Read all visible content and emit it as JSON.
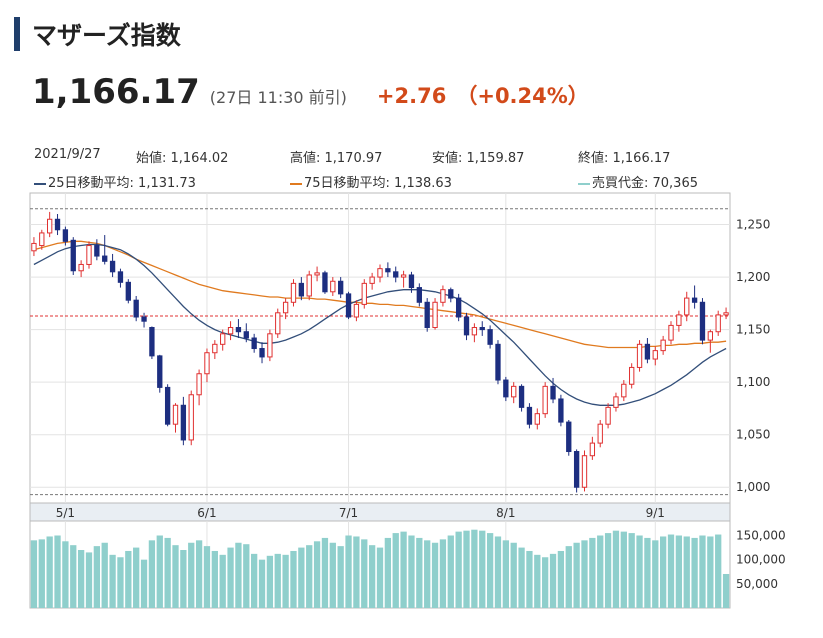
{
  "header": {
    "title": "マザーズ指数",
    "price": "1,166.17",
    "time": "(27日 11:30 前引)",
    "change": "+2.76",
    "change_pct": "（+0.24%）"
  },
  "info_row1": {
    "date": "2021/9/27",
    "open": "始値: 1,164.02",
    "high": "高値: 1,170.97",
    "low": "安値: 1,159.87",
    "close": "終値: 1,166.17"
  },
  "info_row2": {
    "ma25": "25日移動平均: 1,131.73",
    "ma75": "75日移動平均: 1,138.63",
    "volume": "売買代金: 70,365"
  },
  "colors": {
    "up": "#e03030",
    "down": "#1d2e80",
    "ma25": "#334f7a",
    "ma75": "#e07a1f",
    "volume": "#8fcfcc",
    "price_line": "#e03030"
  },
  "chart_data": {
    "type": "candlestick",
    "x_ticks": [
      "5/1",
      "6/1",
      "7/1",
      "8/1",
      "9/1"
    ],
    "y_ticks": [
      "1,250",
      "1,200",
      "1,150",
      "1,100",
      "1,050",
      "1,000"
    ],
    "y_range": [
      985,
      1280
    ],
    "reference_lines": {
      "high_dashed": 1265,
      "low_dashed": 993,
      "current_red": 1163
    },
    "volume_ticks": [
      "150,000",
      "100,000",
      "50,000"
    ],
    "volume_range": [
      0,
      180000
    ],
    "candles": [
      [
        1225,
        1238,
        1220,
        1232
      ],
      [
        1230,
        1245,
        1226,
        1242
      ],
      [
        1242,
        1262,
        1238,
        1255
      ],
      [
        1255,
        1260,
        1240,
        1245
      ],
      [
        1245,
        1248,
        1230,
        1234
      ],
      [
        1235,
        1238,
        1202,
        1206
      ],
      [
        1206,
        1216,
        1200,
        1212
      ],
      [
        1212,
        1234,
        1208,
        1230
      ],
      [
        1230,
        1236,
        1216,
        1220
      ],
      [
        1220,
        1240,
        1212,
        1215
      ],
      [
        1215,
        1222,
        1200,
        1205
      ],
      [
        1205,
        1208,
        1190,
        1195
      ],
      [
        1195,
        1198,
        1175,
        1178
      ],
      [
        1178,
        1182,
        1158,
        1162
      ],
      [
        1162,
        1166,
        1152,
        1158
      ],
      [
        1152,
        1153,
        1122,
        1125
      ],
      [
        1125,
        1126,
        1090,
        1095
      ],
      [
        1095,
        1098,
        1058,
        1060
      ],
      [
        1060,
        1080,
        1052,
        1078
      ],
      [
        1078,
        1086,
        1040,
        1045
      ],
      [
        1045,
        1092,
        1040,
        1088
      ],
      [
        1088,
        1112,
        1078,
        1108
      ],
      [
        1108,
        1132,
        1100,
        1128
      ],
      [
        1128,
        1140,
        1122,
        1136
      ],
      [
        1136,
        1150,
        1130,
        1146
      ],
      [
        1146,
        1158,
        1140,
        1152
      ],
      [
        1152,
        1160,
        1142,
        1148
      ],
      [
        1148,
        1156,
        1138,
        1142
      ],
      [
        1142,
        1146,
        1128,
        1132
      ],
      [
        1132,
        1138,
        1118,
        1124
      ],
      [
        1124,
        1150,
        1120,
        1146
      ],
      [
        1146,
        1170,
        1142,
        1166
      ],
      [
        1166,
        1180,
        1160,
        1176
      ],
      [
        1176,
        1198,
        1172,
        1194
      ],
      [
        1194,
        1200,
        1178,
        1182
      ],
      [
        1182,
        1206,
        1178,
        1202
      ],
      [
        1202,
        1210,
        1196,
        1204
      ],
      [
        1204,
        1206,
        1184,
        1186
      ],
      [
        1186,
        1200,
        1182,
        1196
      ],
      [
        1196,
        1200,
        1180,
        1184
      ],
      [
        1184,
        1186,
        1160,
        1162
      ],
      [
        1162,
        1178,
        1158,
        1174
      ],
      [
        1174,
        1198,
        1170,
        1194
      ],
      [
        1194,
        1204,
        1188,
        1200
      ],
      [
        1200,
        1212,
        1195,
        1208
      ],
      [
        1208,
        1214,
        1200,
        1205
      ],
      [
        1205,
        1210,
        1195,
        1200
      ],
      [
        1200,
        1206,
        1190,
        1202
      ],
      [
        1202,
        1205,
        1185,
        1190
      ],
      [
        1190,
        1194,
        1172,
        1176
      ],
      [
        1176,
        1180,
        1148,
        1152
      ],
      [
        1152,
        1180,
        1150,
        1176
      ],
      [
        1176,
        1192,
        1172,
        1188
      ],
      [
        1188,
        1190,
        1176,
        1180
      ],
      [
        1180,
        1184,
        1158,
        1162
      ],
      [
        1162,
        1166,
        1140,
        1145
      ],
      [
        1145,
        1156,
        1138,
        1152
      ],
      [
        1152,
        1158,
        1144,
        1150
      ],
      [
        1150,
        1154,
        1132,
        1136
      ],
      [
        1136,
        1140,
        1098,
        1102
      ],
      [
        1102,
        1105,
        1082,
        1086
      ],
      [
        1086,
        1100,
        1080,
        1096
      ],
      [
        1096,
        1098,
        1072,
        1076
      ],
      [
        1076,
        1080,
        1056,
        1060
      ],
      [
        1060,
        1075,
        1055,
        1070
      ],
      [
        1070,
        1100,
        1066,
        1096
      ],
      [
        1096,
        1104,
        1080,
        1084
      ],
      [
        1084,
        1088,
        1058,
        1062
      ],
      [
        1062,
        1064,
        1030,
        1034
      ],
      [
        1034,
        1036,
        995,
        1000
      ],
      [
        1000,
        1035,
        996,
        1030
      ],
      [
        1030,
        1048,
        1026,
        1042
      ],
      [
        1042,
        1064,
        1038,
        1060
      ],
      [
        1060,
        1080,
        1056,
        1076
      ],
      [
        1076,
        1090,
        1072,
        1086
      ],
      [
        1086,
        1102,
        1082,
        1098
      ],
      [
        1098,
        1118,
        1094,
        1114
      ],
      [
        1114,
        1140,
        1110,
        1136
      ],
      [
        1136,
        1142,
        1118,
        1122
      ],
      [
        1122,
        1134,
        1116,
        1130
      ],
      [
        1130,
        1144,
        1126,
        1140
      ],
      [
        1140,
        1158,
        1136,
        1154
      ],
      [
        1154,
        1168,
        1148,
        1164
      ],
      [
        1164,
        1186,
        1158,
        1180
      ],
      [
        1180,
        1192,
        1170,
        1176
      ],
      [
        1176,
        1180,
        1136,
        1140
      ],
      [
        1140,
        1150,
        1128,
        1148
      ],
      [
        1148,
        1168,
        1144,
        1164
      ],
      [
        1164,
        1171,
        1160,
        1166
      ]
    ],
    "ma25": [
      1212,
      1216,
      1220,
      1224,
      1227,
      1229,
      1230,
      1231,
      1231,
      1230,
      1228,
      1226,
      1222,
      1217,
      1211,
      1204,
      1196,
      1188,
      1180,
      1172,
      1165,
      1159,
      1154,
      1150,
      1147,
      1145,
      1143,
      1141,
      1139,
      1137,
      1137,
      1138,
      1140,
      1143,
      1146,
      1150,
      1155,
      1160,
      1165,
      1170,
      1174,
      1177,
      1180,
      1182,
      1184,
      1186,
      1187,
      1188,
      1188,
      1188,
      1187,
      1186,
      1184,
      1182,
      1179,
      1175,
      1170,
      1165,
      1159,
      1152,
      1145,
      1138,
      1130,
      1122,
      1114,
      1106,
      1099,
      1093,
      1088,
      1084,
      1081,
      1079,
      1078,
      1078,
      1078,
      1079,
      1081,
      1083,
      1086,
      1089,
      1093,
      1097,
      1102,
      1107,
      1113,
      1119,
      1124,
      1128,
      1132
    ],
    "ma75": [
      1226,
      1228,
      1230,
      1232,
      1233,
      1234,
      1234,
      1233,
      1232,
      1230,
      1227,
      1224,
      1221,
      1217,
      1214,
      1211,
      1208,
      1205,
      1202,
      1199,
      1196,
      1193,
      1191,
      1189,
      1187,
      1186,
      1185,
      1184,
      1183,
      1182,
      1181,
      1181,
      1180,
      1180,
      1180,
      1180,
      1179,
      1179,
      1178,
      1177,
      1176,
      1176,
      1175,
      1175,
      1174,
      1174,
      1173,
      1173,
      1172,
      1171,
      1170,
      1169,
      1168,
      1167,
      1166,
      1165,
      1164,
      1162,
      1160,
      1158,
      1156,
      1154,
      1152,
      1150,
      1148,
      1146,
      1144,
      1142,
      1140,
      1138,
      1136,
      1135,
      1134,
      1133,
      1133,
      1133,
      1133,
      1133,
      1134,
      1134,
      1135,
      1135,
      1136,
      1136,
      1137,
      1137,
      1138,
      1138,
      1139
    ],
    "volumes": [
      140000,
      142000,
      148000,
      150000,
      138000,
      130000,
      120000,
      115000,
      128000,
      135000,
      110000,
      105000,
      118000,
      125000,
      100000,
      140000,
      150000,
      145000,
      130000,
      120000,
      135000,
      140000,
      128000,
      118000,
      110000,
      125000,
      135000,
      132000,
      112000,
      100000,
      108000,
      112000,
      110000,
      118000,
      125000,
      130000,
      138000,
      145000,
      135000,
      128000,
      150000,
      148000,
      142000,
      130000,
      125000,
      145000,
      155000,
      158000,
      150000,
      145000,
      140000,
      135000,
      142000,
      150000,
      158000,
      160000,
      162000,
      160000,
      155000,
      148000,
      140000,
      135000,
      125000,
      118000,
      110000,
      105000,
      112000,
      118000,
      128000,
      135000,
      140000,
      145000,
      150000,
      155000,
      160000,
      158000,
      155000,
      150000,
      145000,
      140000,
      148000,
      152000,
      150000,
      148000,
      145000,
      150000,
      148000,
      152000,
      70365
    ]
  }
}
